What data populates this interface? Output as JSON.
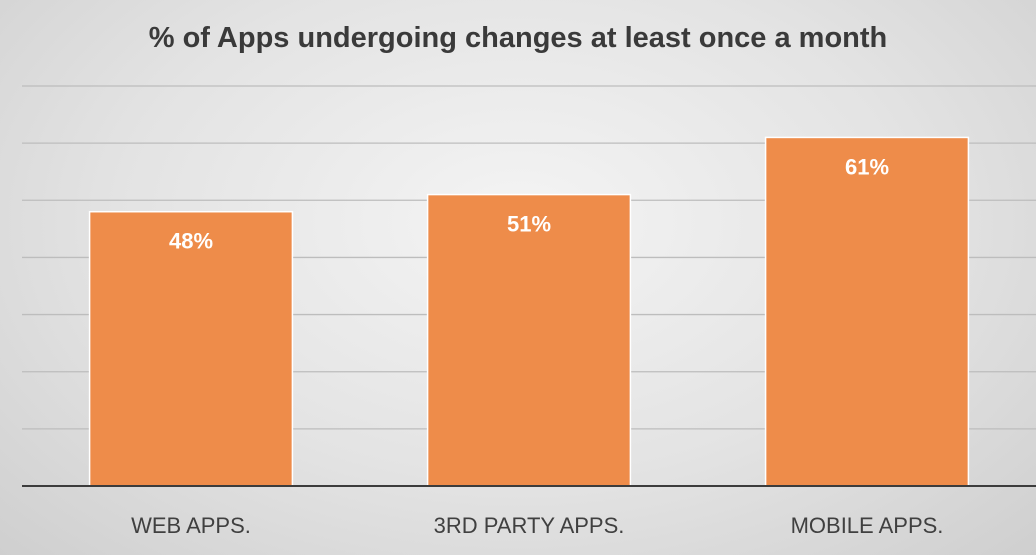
{
  "chart_data": {
    "type": "bar",
    "title": "% of Apps undergoing changes at least once a month",
    "categories": [
      "WEB APPS.",
      "3RD PARTY APPS.",
      "MOBILE APPS."
    ],
    "values": [
      48,
      51,
      61
    ],
    "data_labels": [
      "48%",
      "51%",
      "61%"
    ],
    "xlabel": "",
    "ylabel": "",
    "ylim": [
      0,
      70
    ],
    "grid": true,
    "bar_color": "#ee8c4a",
    "label_color": "#ffffff"
  }
}
